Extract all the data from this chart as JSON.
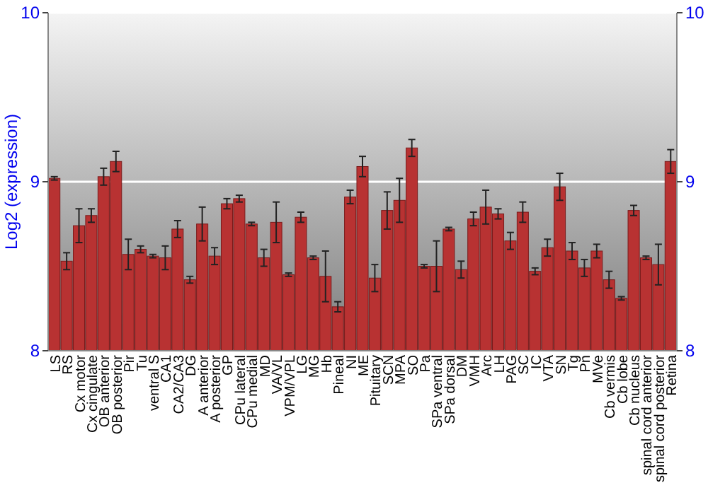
{
  "chart_data": {
    "type": "bar",
    "ylabel": "Log2 (expression)",
    "categories": [
      "LS",
      "RS",
      "Cx motor",
      "Cx cingulate",
      "OB anterior",
      "OB posterior",
      "Pir",
      "Tu",
      "ventral S",
      "CA1",
      "CA2/CA3",
      "DG",
      "A anterior",
      "A posterior",
      "GP",
      "CPu lateral",
      "CPu medial",
      "MD",
      "VA/VL",
      "VPM/VPL",
      "LG",
      "MG",
      "Hb",
      "Pineal",
      "NI",
      "ME",
      "Pituitary",
      "SCN",
      "MPA",
      "SO",
      "Pa",
      "SPa ventral",
      "SPa dorsal",
      "DM",
      "VMH",
      "Arc",
      "LH",
      "PAG",
      "SC",
      "IC",
      "VTA",
      "SN",
      "Tg",
      "Pn",
      "MVe",
      "Cb vermis",
      "Cb lobe",
      "Cb nucleus",
      "spinal cord anterior",
      "spinal cord posterior",
      "Retina"
    ],
    "values": [
      9.02,
      8.53,
      8.74,
      8.8,
      9.03,
      9.12,
      8.57,
      8.6,
      8.56,
      8.55,
      8.72,
      8.42,
      8.75,
      8.56,
      8.87,
      8.9,
      8.75,
      8.55,
      8.76,
      8.45,
      8.79,
      8.55,
      8.44,
      8.26,
      8.91,
      9.09,
      8.43,
      8.83,
      8.89,
      9.2,
      8.5,
      8.5,
      8.72,
      8.48,
      8.78,
      8.85,
      8.81,
      8.65,
      8.82,
      8.47,
      8.61,
      8.97,
      8.59,
      8.49,
      8.59,
      8.42,
      8.31,
      8.83,
      8.55,
      8.51,
      9.12
    ],
    "errors": [
      0.01,
      0.05,
      0.1,
      0.04,
      0.05,
      0.06,
      0.09,
      0.02,
      0.01,
      0.07,
      0.05,
      0.02,
      0.1,
      0.05,
      0.03,
      0.02,
      0.01,
      0.05,
      0.12,
      0.01,
      0.03,
      0.01,
      0.15,
      0.03,
      0.04,
      0.06,
      0.08,
      0.11,
      0.13,
      0.05,
      0.01,
      0.15,
      0.01,
      0.05,
      0.04,
      0.1,
      0.03,
      0.05,
      0.06,
      0.02,
      0.05,
      0.08,
      0.05,
      0.05,
      0.04,
      0.05,
      0.01,
      0.03,
      0.01,
      0.12,
      0.07
    ],
    "color": "#b83232",
    "ylim": [
      8,
      10
    ],
    "yticks": [
      8,
      9,
      10
    ],
    "y2lim": [
      8,
      10
    ],
    "y2ticks": [
      8,
      9,
      10
    ],
    "grid": "y"
  }
}
